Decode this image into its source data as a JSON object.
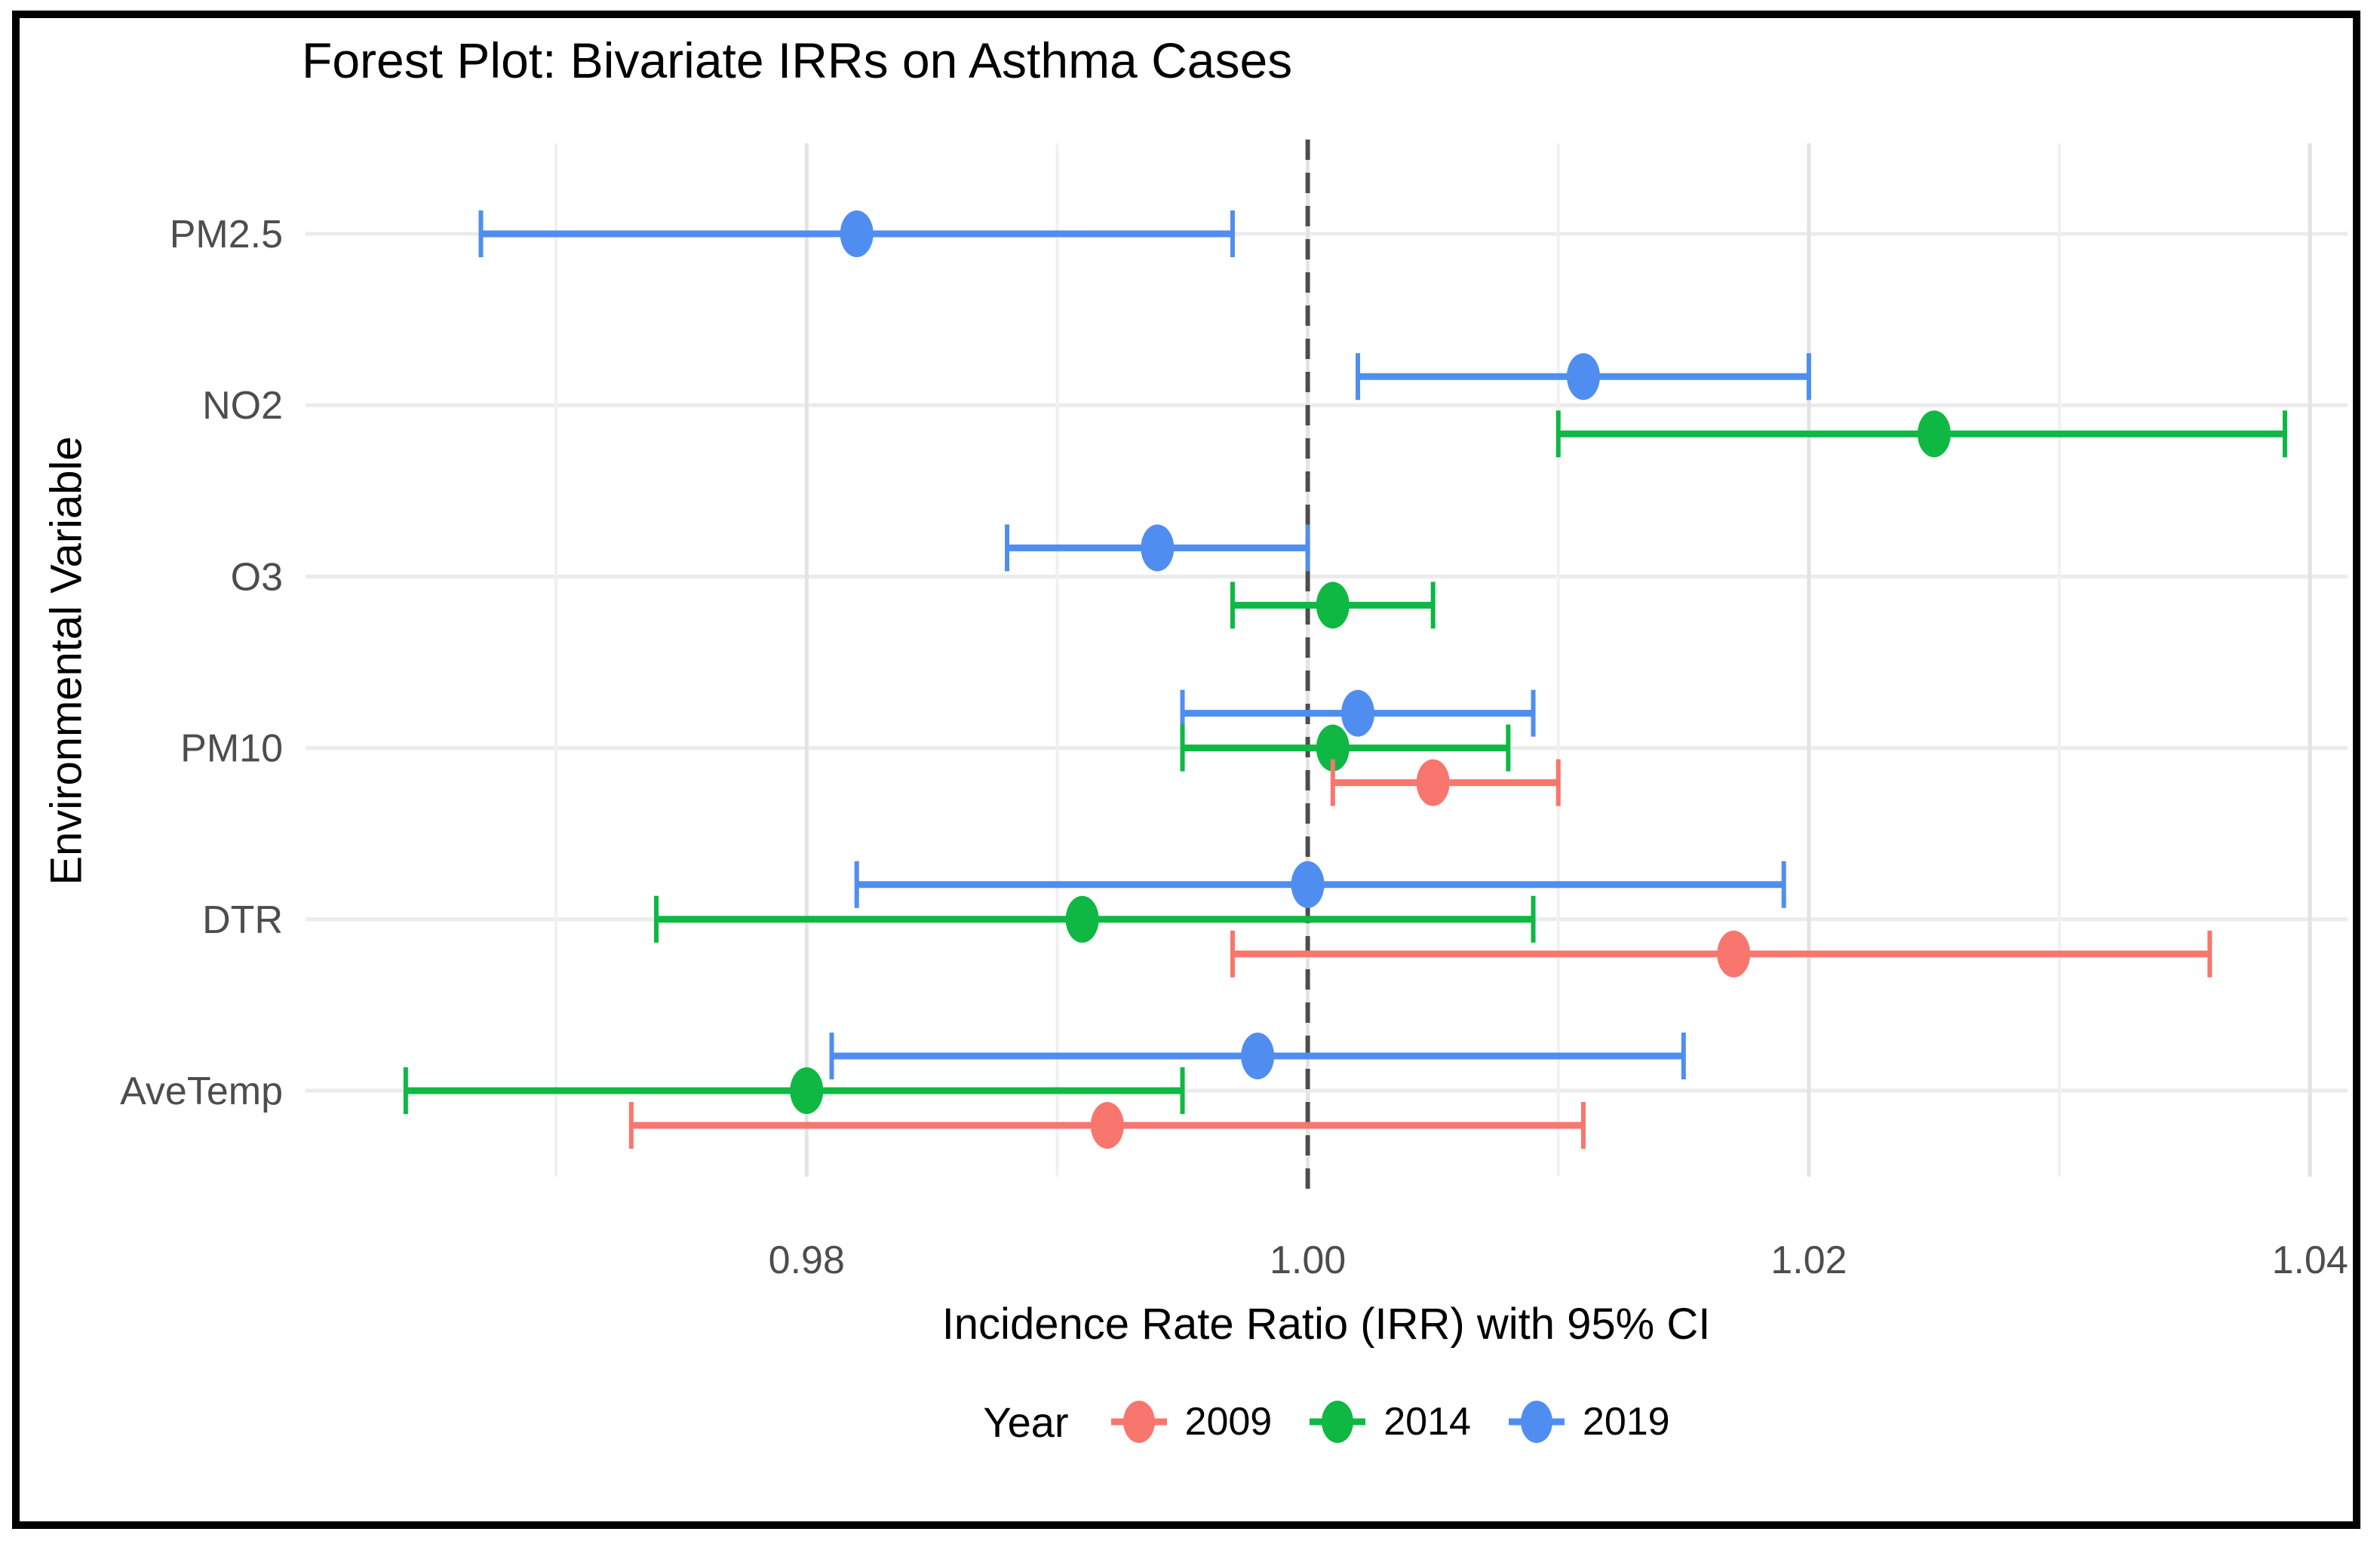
{
  "chart_data": {
    "type": "scatter",
    "subtype": "forest-plot-with-error-bars",
    "title": "Forest Plot: Bivariate IRRs on Asthma Cases",
    "xlabel": "Incidence Rate Ratio (IRR) with 95% CI",
    "ylabel": "Environmental Variable",
    "categories": [
      "PM2.5",
      "NO2",
      "O3",
      "PM10",
      "DTR",
      "AveTemp"
    ],
    "x_axis": {
      "range": [
        0.96,
        1.0415
      ],
      "ticks": [
        {
          "value": 0.98,
          "label": "0.98"
        },
        {
          "value": 1.0,
          "label": "1.00"
        },
        {
          "value": 1.02,
          "label": "1.02"
        },
        {
          "value": 1.04,
          "label": "1.04"
        }
      ],
      "minor_ticks": [
        0.97,
        0.99,
        1.01,
        1.03
      ]
    },
    "reference_line": {
      "value": 1.0,
      "style": "dashed",
      "color": "#4D4D4D"
    },
    "legend": {
      "title": "Year",
      "position": "bottom"
    },
    "series": [
      {
        "name": "2009",
        "color": "#F8766D",
        "points": [
          {
            "category": "PM10",
            "irr": 1.005,
            "ci_low": 1.001,
            "ci_high": 1.01
          },
          {
            "category": "DTR",
            "irr": 1.017,
            "ci_low": 0.997,
            "ci_high": 1.036
          },
          {
            "category": "AveTemp",
            "irr": 0.992,
            "ci_low": 0.973,
            "ci_high": 1.011
          }
        ]
      },
      {
        "name": "2014",
        "color": "#0EB843",
        "points": [
          {
            "category": "NO2",
            "irr": 1.025,
            "ci_low": 1.01,
            "ci_high": 1.039
          },
          {
            "category": "O3",
            "irr": 1.001,
            "ci_low": 0.997,
            "ci_high": 1.005
          },
          {
            "category": "PM10",
            "irr": 1.001,
            "ci_low": 0.995,
            "ci_high": 1.008
          },
          {
            "category": "DTR",
            "irr": 0.991,
            "ci_low": 0.974,
            "ci_high": 1.009
          },
          {
            "category": "AveTemp",
            "irr": 0.98,
            "ci_low": 0.964,
            "ci_high": 0.995
          }
        ]
      },
      {
        "name": "2019",
        "color": "#4F8EF0",
        "points": [
          {
            "category": "PM2.5",
            "irr": 0.982,
            "ci_low": 0.967,
            "ci_high": 0.997
          },
          {
            "category": "NO2",
            "irr": 1.011,
            "ci_low": 1.002,
            "ci_high": 1.02
          },
          {
            "category": "O3",
            "irr": 0.994,
            "ci_low": 0.988,
            "ci_high": 1.0
          },
          {
            "category": "PM10",
            "irr": 1.002,
            "ci_low": 0.995,
            "ci_high": 1.009
          },
          {
            "category": "DTR",
            "irr": 1.0,
            "ci_low": 0.982,
            "ci_high": 1.019
          },
          {
            "category": "AveTemp",
            "irr": 0.998,
            "ci_low": 0.981,
            "ci_high": 1.015
          }
        ]
      }
    ],
    "grid": {
      "major_color": "#E3E3E3",
      "minor_color": "#F1F1F1",
      "row_color": "#EBEBEB",
      "background": "#FFFFFF"
    },
    "text_colors": {
      "tick_labels": "#4D4D4D",
      "category_labels": "#4D4D4D",
      "titles": "#000000"
    }
  }
}
